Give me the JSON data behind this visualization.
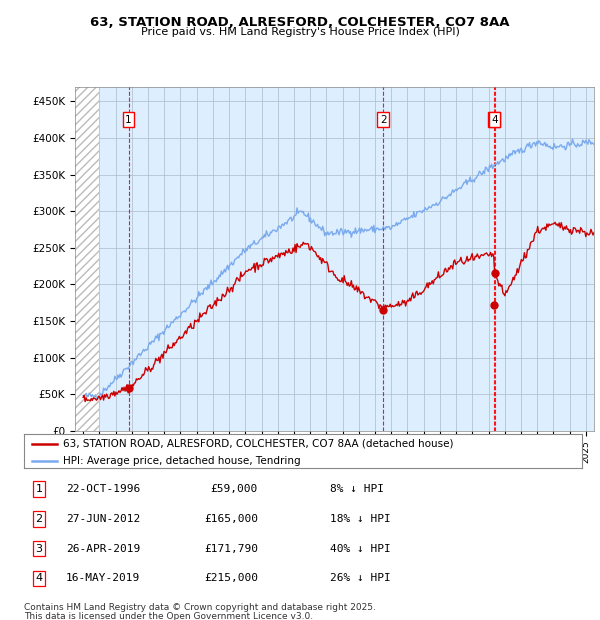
{
  "title_line1": "63, STATION ROAD, ALRESFORD, COLCHESTER, CO7 8AA",
  "title_line2": "Price paid vs. HM Land Registry's House Price Index (HPI)",
  "ylabel_ticks": [
    "£0",
    "£50K",
    "£100K",
    "£150K",
    "£200K",
    "£250K",
    "£300K",
    "£350K",
    "£400K",
    "£450K"
  ],
  "ytick_values": [
    0,
    50000,
    100000,
    150000,
    200000,
    250000,
    300000,
    350000,
    400000,
    450000
  ],
  "xlim": [
    1993.5,
    2025.5
  ],
  "ylim": [
    0,
    470000
  ],
  "hpi_color": "#7aaaee",
  "price_color": "#cc0000",
  "legend_line1": "63, STATION ROAD, ALRESFORD, COLCHESTER, CO7 8AA (detached house)",
  "legend_line2": "HPI: Average price, detached house, Tendring",
  "transactions": [
    {
      "num": 1,
      "date": "22-OCT-1996",
      "price": 59000,
      "pct": "8% ↓ HPI",
      "year": 1996.8
    },
    {
      "num": 2,
      "date": "27-JUN-2012",
      "price": 165000,
      "pct": "18% ↓ HPI",
      "year": 2012.5
    },
    {
      "num": 3,
      "date": "26-APR-2019",
      "price": 171790,
      "pct": "40% ↓ HPI",
      "year": 2019.32
    },
    {
      "num": 4,
      "date": "16-MAY-2019",
      "price": 215000,
      "pct": "26% ↓ HPI",
      "year": 2019.37
    }
  ],
  "tx_display": [
    {
      "num": "1",
      "date": "22-OCT-1996",
      "price": "£59,000",
      "pct": "8% ↓ HPI"
    },
    {
      "num": "2",
      "date": "27-JUN-2012",
      "price": "£165,000",
      "pct": "18% ↓ HPI"
    },
    {
      "num": "3",
      "date": "26-APR-2019",
      "price": "£171,790",
      "pct": "40% ↓ HPI"
    },
    {
      "num": "4",
      "date": "16-MAY-2019",
      "price": "£215,000",
      "pct": "26% ↓ HPI"
    }
  ],
  "footer_line1": "Contains HM Land Registry data © Crown copyright and database right 2025.",
  "footer_line2": "This data is licensed under the Open Government Licence v3.0.",
  "hatch_end_year": 1995.0,
  "plot_bg": "#ddeeff"
}
